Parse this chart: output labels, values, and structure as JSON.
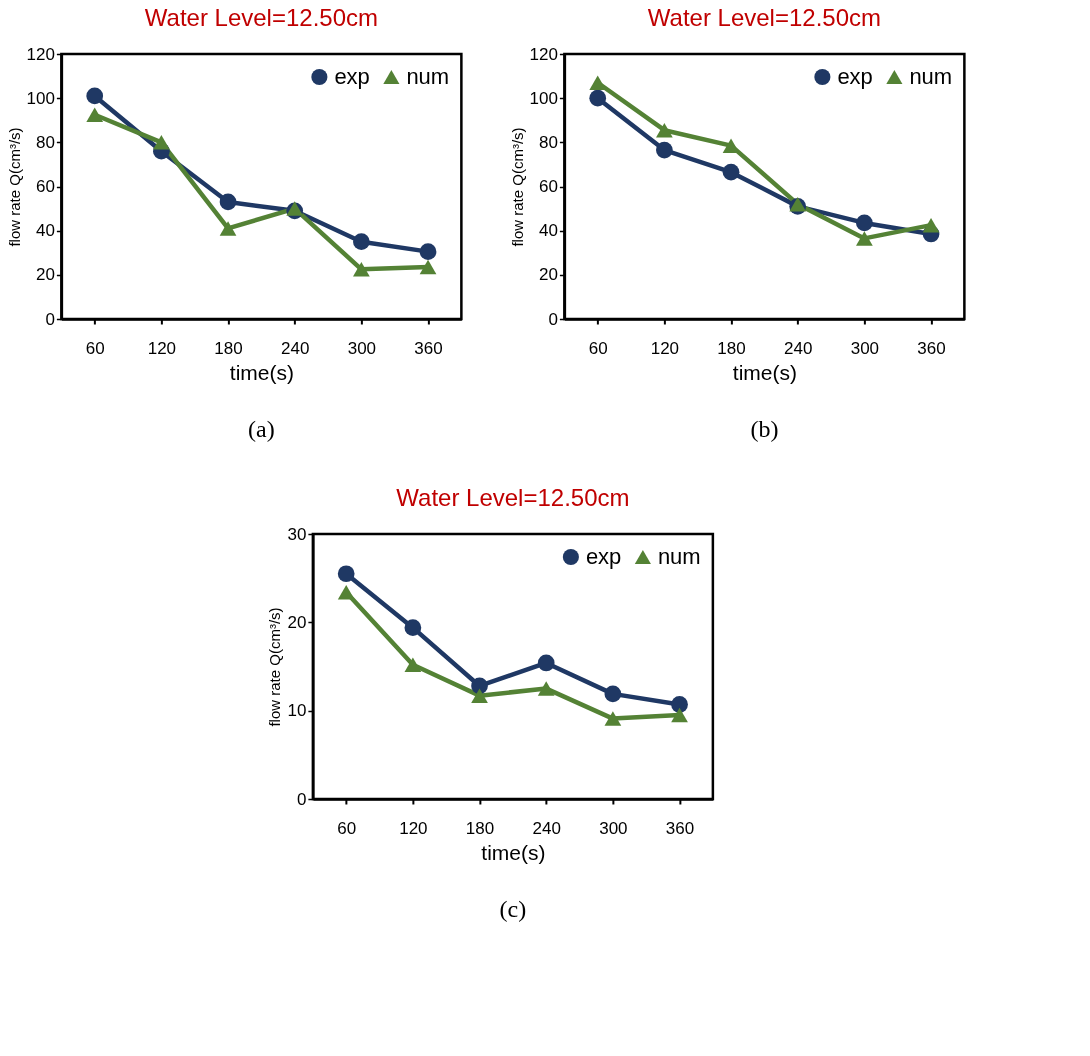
{
  "chart_data": [
    {
      "type": "line",
      "title": "Water Level=12.50cm",
      "xlabel": "time(s)",
      "ylabel": "flow rate Q(cm³/s)",
      "categories": [
        "60",
        "120",
        "180",
        "240",
        "300",
        "360"
      ],
      "ylim": [
        0,
        120
      ],
      "yticks": [
        0,
        20,
        40,
        60,
        80,
        100,
        120
      ],
      "grid": false,
      "legend": "top right",
      "line_style": "solid",
      "annotations": [
        "(a)"
      ],
      "series": [
        {
          "name": "exp",
          "color": "#1f3864",
          "marker": "circle",
          "values": [
            101,
            76,
            53,
            49,
            35,
            30.5
          ]
        },
        {
          "name": "num",
          "color": "#548235",
          "marker": "triangle",
          "values": [
            92.5,
            80,
            41,
            50,
            22.5,
            23.5
          ]
        }
      ]
    },
    {
      "type": "line",
      "title": "Water Level=12.50cm",
      "xlabel": "time(s)",
      "ylabel": "flow rate Q(cm³/s)",
      "categories": [
        "60",
        "120",
        "180",
        "240",
        "300",
        "360"
      ],
      "ylim": [
        0,
        120
      ],
      "yticks": [
        0,
        20,
        40,
        60,
        80,
        100,
        120
      ],
      "grid": false,
      "legend": "top right",
      "line_style": "solid",
      "annotations": [
        "(b)"
      ],
      "series": [
        {
          "name": "exp",
          "color": "#1f3864",
          "marker": "circle",
          "values": [
            100,
            76.5,
            66.5,
            51,
            43.5,
            38.5
          ]
        },
        {
          "name": "num",
          "color": "#548235",
          "marker": "triangle",
          "values": [
            107,
            85.5,
            78.5,
            52,
            36.5,
            42.5
          ]
        }
      ]
    },
    {
      "type": "line",
      "title": "Water Level=12.50cm",
      "xlabel": "time(s)",
      "ylabel": "flow rate Q(cm³/s)",
      "categories": [
        "60",
        "120",
        "180",
        "240",
        "300",
        "360"
      ],
      "ylim": [
        0,
        30
      ],
      "yticks": [
        0,
        10,
        20,
        30
      ],
      "grid": false,
      "legend": "top right",
      "line_style": "solid",
      "annotations": [
        "(c)"
      ],
      "series": [
        {
          "name": "exp",
          "color": "#1f3864",
          "marker": "circle",
          "values": [
            25.5,
            19.4,
            12.8,
            15.4,
            11.9,
            10.7
          ]
        },
        {
          "name": "num",
          "color": "#548235",
          "marker": "triangle",
          "values": [
            23.4,
            15.2,
            11.7,
            12.5,
            9.1,
            9.5
          ]
        }
      ]
    }
  ]
}
